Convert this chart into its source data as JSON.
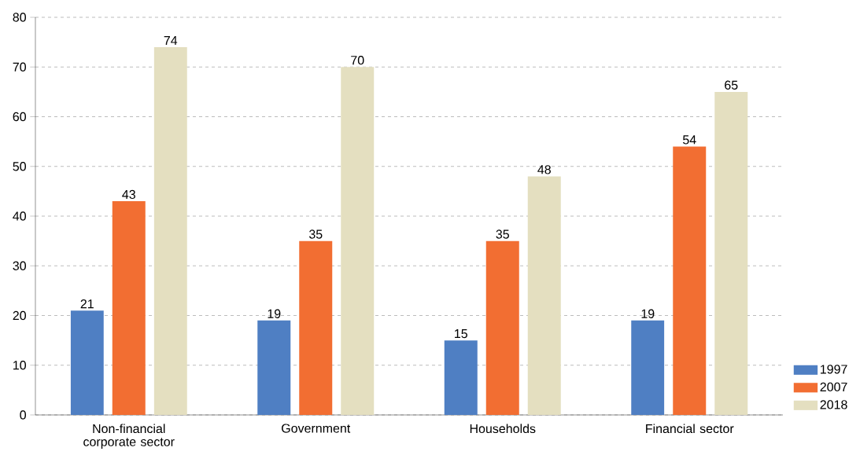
{
  "chart_data": {
    "type": "bar",
    "categories": [
      "Non-financial corporate sector",
      "Government",
      "Households",
      "Financial sector"
    ],
    "series": [
      {
        "name": "1997",
        "color": "#4f7fc3",
        "values": [
          21,
          19,
          15,
          19
        ]
      },
      {
        "name": "2007",
        "color": "#f26e32",
        "values": [
          43,
          35,
          35,
          54
        ]
      },
      {
        "name": "2018",
        "color": "#e4dfc0",
        "values": [
          74,
          70,
          48,
          65
        ]
      }
    ],
    "ylim": [
      0,
      80
    ],
    "yticks": [
      0,
      10,
      20,
      30,
      40,
      50,
      60,
      70,
      80
    ],
    "grid": "y",
    "legend": "bottom right",
    "data_labels": true
  }
}
